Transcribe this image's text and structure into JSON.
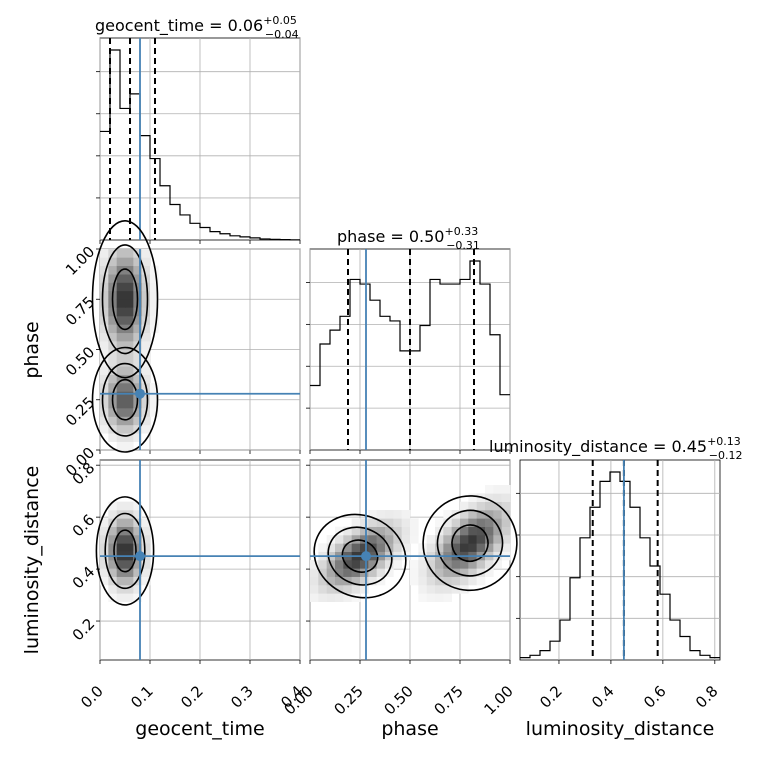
{
  "chart_data": {
    "type": "corner",
    "parameters": [
      "geocent_time",
      "phase",
      "luminosity_distance"
    ],
    "titles": [
      {
        "param": "geocent_time",
        "text": "geocent_time = 0.06",
        "plus": "+0.05",
        "minus": "−0.04"
      },
      {
        "param": "phase",
        "text": "phase = 0.50",
        "plus": "+0.33",
        "minus": "−0.31"
      },
      {
        "param": "luminosity_distance",
        "text": "luminosity_distance = 0.45",
        "plus": "+0.13",
        "minus": "−0.12"
      }
    ],
    "axis_labels": {
      "x": [
        "geocent_time",
        "phase",
        "luminosity_distance"
      ],
      "y": [
        "phase",
        "luminosity_distance"
      ]
    },
    "ranges": {
      "geocent_time": [
        0.0,
        0.4
      ],
      "phase": [
        0.0,
        1.0
      ],
      "luminosity_distance": [
        0.05,
        0.82
      ]
    },
    "ticks": {
      "geocent_time": [
        "0.0",
        "0.1",
        "0.2",
        "0.3",
        "0.4"
      ],
      "phase": [
        "0.00",
        "0.25",
        "0.50",
        "0.75",
        "1.00"
      ],
      "luminosity_distance": [
        "0.2",
        "0.4",
        "0.6",
        "0.8"
      ]
    },
    "truth": {
      "geocent_time": 0.08,
      "phase": 0.28,
      "luminosity_distance": 0.45
    },
    "quantiles": {
      "geocent_time": [
        0.02,
        0.06,
        0.11
      ],
      "phase": [
        0.19,
        0.5,
        0.82
      ],
      "luminosity_distance": [
        0.33,
        0.45,
        0.58
      ]
    },
    "histograms": {
      "geocent_time": {
        "edges_start": 0.0,
        "bin_width": 0.02,
        "counts": [
          0.52,
          0.91,
          0.63,
          0.7,
          0.5,
          0.39,
          0.26,
          0.17,
          0.12,
          0.08,
          0.06,
          0.04,
          0.03,
          0.02,
          0.015,
          0.01,
          0.005,
          0.003,
          0.002,
          0.001
        ]
      },
      "phase": {
        "edges_start": 0.0,
        "bin_width": 0.05,
        "counts": [
          0.28,
          0.46,
          0.52,
          0.58,
          0.74,
          0.72,
          0.65,
          0.58,
          0.56,
          0.43,
          0.43,
          0.54,
          0.74,
          0.72,
          0.72,
          0.74,
          0.82,
          0.72,
          0.5,
          0.24
        ]
      },
      "luminosity_distance": {
        "edges_start": 0.05,
        "bin_width": 0.0385,
        "counts": [
          0.01,
          0.02,
          0.04,
          0.08,
          0.17,
          0.35,
          0.52,
          0.65,
          0.76,
          0.8,
          0.76,
          0.65,
          0.52,
          0.4,
          0.28,
          0.17,
          0.1,
          0.04,
          0.02,
          0.01
        ]
      }
    },
    "modes_2d": {
      "geocent_time_vs_phase": [
        {
          "x": 0.05,
          "y": 0.75
        },
        {
          "x": 0.05,
          "y": 0.25
        }
      ],
      "geocent_time_vs_luminosity_distance": [
        {
          "x": 0.05,
          "y": 0.47
        }
      ],
      "phase_vs_luminosity_distance": [
        {
          "x": 0.25,
          "y": 0.45
        },
        {
          "x": 0.8,
          "y": 0.5
        }
      ]
    },
    "truth_color": "#4682b4",
    "grid": true
  }
}
